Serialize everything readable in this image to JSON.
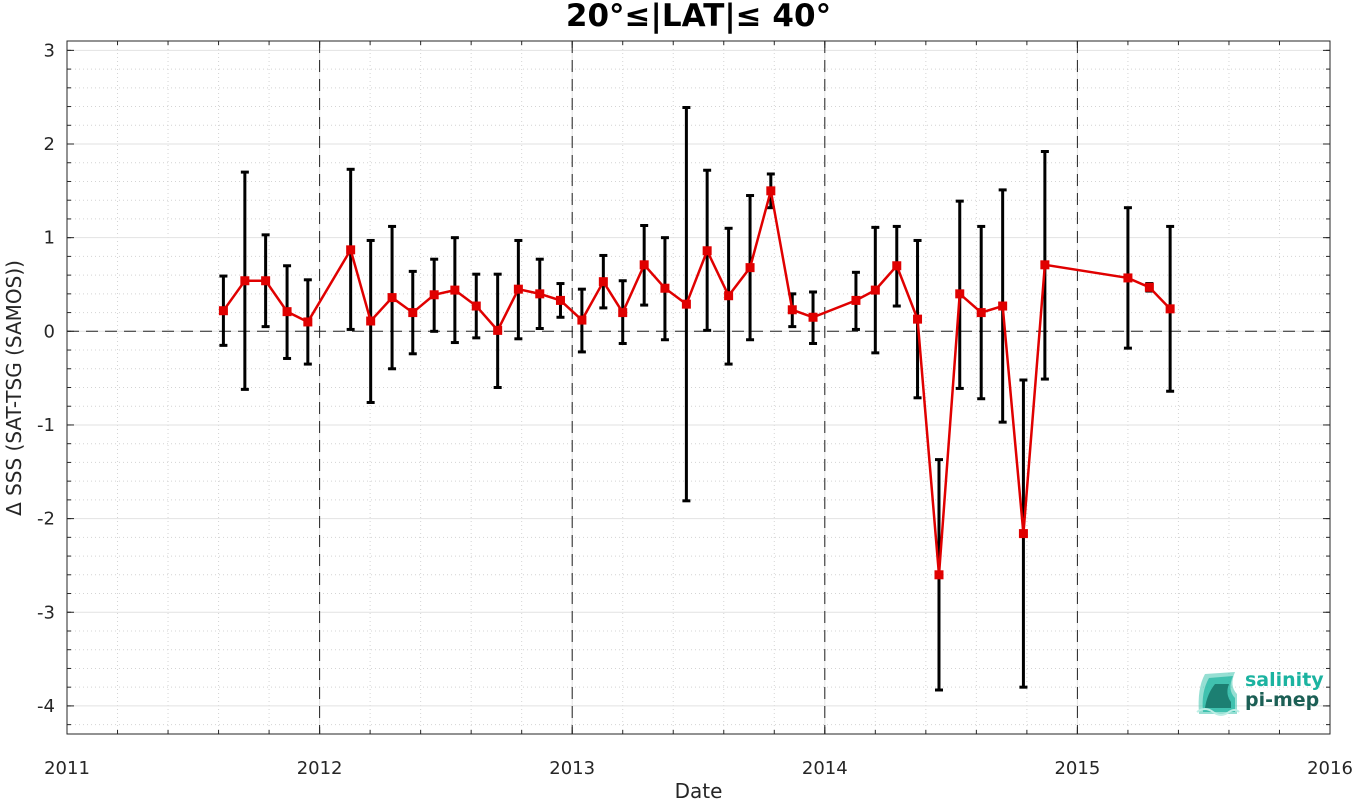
{
  "chart_data": {
    "type": "line",
    "title": "20°≤|LAT|≤ 40°",
    "xlabel": "Date",
    "ylabel": "Δ SSS (SAT-TSG (SAMOS))",
    "xlim": [
      "2011-01-01",
      "2016-01-01"
    ],
    "ylim": [
      -4.3,
      3.1
    ],
    "x_ticks": [
      "2011",
      "2012",
      "2013",
      "2014",
      "2015",
      "2016"
    ],
    "y_ticks": [
      -4,
      -3,
      -2,
      -1,
      0,
      1,
      2,
      3
    ],
    "grid": true,
    "reference_line_y": 0,
    "year_separators": [
      "2012",
      "2013",
      "2014",
      "2015"
    ],
    "series": [
      {
        "color": "#e00000",
        "marker": "square",
        "points": [
          {
            "x": "2011-08-15",
            "y": 0.22,
            "low": -0.15,
            "high": 0.59
          },
          {
            "x": "2011-09-15",
            "y": 0.54,
            "low": -0.62,
            "high": 1.7
          },
          {
            "x": "2011-10-15",
            "y": 0.54,
            "low": 0.05,
            "high": 1.03
          },
          {
            "x": "2011-11-15",
            "y": 0.21,
            "low": -0.29,
            "high": 0.7
          },
          {
            "x": "2011-12-15",
            "y": 0.1,
            "low": -0.35,
            "high": 0.55
          },
          {
            "x": "2012-02-15",
            "y": 0.87,
            "low": 0.02,
            "high": 1.73
          },
          {
            "x": "2012-03-15",
            "y": 0.11,
            "low": -0.76,
            "high": 0.97
          },
          {
            "x": "2012-04-15",
            "y": 0.36,
            "low": -0.4,
            "high": 1.12
          },
          {
            "x": "2012-05-15",
            "y": 0.2,
            "low": -0.24,
            "high": 0.64
          },
          {
            "x": "2012-06-15",
            "y": 0.39,
            "low": 0.0,
            "high": 0.77
          },
          {
            "x": "2012-07-15",
            "y": 0.44,
            "low": -0.12,
            "high": 1.0
          },
          {
            "x": "2012-08-15",
            "y": 0.27,
            "low": -0.07,
            "high": 0.61
          },
          {
            "x": "2012-09-15",
            "y": 0.01,
            "low": -0.6,
            "high": 0.61
          },
          {
            "x": "2012-10-15",
            "y": 0.45,
            "low": -0.08,
            "high": 0.97
          },
          {
            "x": "2012-11-15",
            "y": 0.4,
            "low": 0.03,
            "high": 0.77
          },
          {
            "x": "2012-12-15",
            "y": 0.33,
            "low": 0.15,
            "high": 0.51
          },
          {
            "x": "2013-01-15",
            "y": 0.12,
            "low": -0.22,
            "high": 0.45
          },
          {
            "x": "2013-02-15",
            "y": 0.53,
            "low": 0.25,
            "high": 0.81
          },
          {
            "x": "2013-03-15",
            "y": 0.2,
            "low": -0.13,
            "high": 0.54
          },
          {
            "x": "2013-04-15",
            "y": 0.71,
            "low": 0.28,
            "high": 1.13
          },
          {
            "x": "2013-05-15",
            "y": 0.46,
            "low": -0.09,
            "high": 1.0
          },
          {
            "x": "2013-06-15",
            "y": 0.29,
            "low": -1.81,
            "high": 2.39
          },
          {
            "x": "2013-07-15",
            "y": 0.86,
            "low": 0.01,
            "high": 1.72
          },
          {
            "x": "2013-08-15",
            "y": 0.38,
            "low": -0.35,
            "high": 1.1
          },
          {
            "x": "2013-09-15",
            "y": 0.68,
            "low": -0.09,
            "high": 1.45
          },
          {
            "x": "2013-10-15",
            "y": 1.5,
            "low": 1.32,
            "high": 1.68
          },
          {
            "x": "2013-11-15",
            "y": 0.23,
            "low": 0.05,
            "high": 0.4
          },
          {
            "x": "2013-12-15",
            "y": 0.15,
            "low": -0.13,
            "high": 0.42
          },
          {
            "x": "2014-02-15",
            "y": 0.33,
            "low": 0.02,
            "high": 0.63
          },
          {
            "x": "2014-03-15",
            "y": 0.44,
            "low": -0.23,
            "high": 1.11
          },
          {
            "x": "2014-04-15",
            "y": 0.7,
            "low": 0.27,
            "high": 1.12
          },
          {
            "x": "2014-05-15",
            "y": 0.13,
            "low": -0.71,
            "high": 0.97
          },
          {
            "x": "2014-06-15",
            "y": -2.6,
            "low": -3.83,
            "high": -1.37
          },
          {
            "x": "2014-07-15",
            "y": 0.4,
            "low": -0.61,
            "high": 1.39
          },
          {
            "x": "2014-08-15",
            "y": 0.2,
            "low": -0.72,
            "high": 1.12
          },
          {
            "x": "2014-09-15",
            "y": 0.27,
            "low": -0.97,
            "high": 1.51
          },
          {
            "x": "2014-10-15",
            "y": -2.16,
            "low": -3.8,
            "high": -0.52
          },
          {
            "x": "2014-11-15",
            "y": 0.71,
            "low": -0.51,
            "high": 1.92
          },
          {
            "x": "2015-03-15",
            "y": 0.57,
            "low": -0.18,
            "high": 1.32
          },
          {
            "x": "2015-04-15",
            "y": 0.47,
            "low": 0.43,
            "high": 0.51
          },
          {
            "x": "2015-05-15",
            "y": 0.24,
            "low": -0.64,
            "high": 1.12
          }
        ]
      }
    ]
  },
  "logo": {
    "line1": "salinity",
    "line2": "pi-mep",
    "color1": "#1bb3a0",
    "color2": "#1c5f55"
  }
}
